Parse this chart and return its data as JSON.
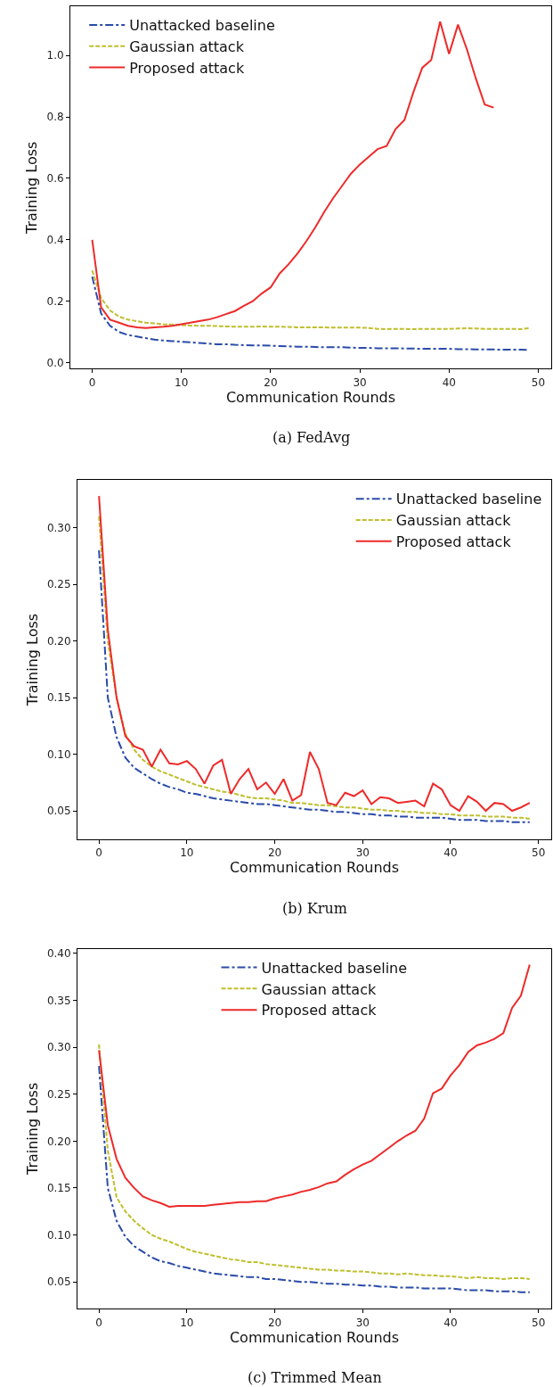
{
  "chart_data": [
    {
      "type": "line",
      "xlabel": "Communication Rounds",
      "ylabel": "Training Loss",
      "annotations": [
        "(a) FedAvg"
      ],
      "xlim": [
        -2.45,
        51.45
      ],
      "xticks": [
        0,
        10,
        20,
        30,
        40,
        50
      ],
      "ylim": [
        -0.02,
        1.16
      ],
      "yticks": [
        {
          "value": 0,
          "label": "0.0"
        },
        0.2,
        0.4,
        0.6,
        0.8,
        {
          "value": 1,
          "label": "1.0"
        }
      ],
      "legend": "top left",
      "series": [
        {
          "name": "Unattacked baseline",
          "color": "#2b4ba8",
          "line_style": "dashdot",
          "x": [
            0,
            1,
            2,
            3,
            4,
            5,
            6,
            7,
            8,
            9,
            10,
            11,
            12,
            13,
            14,
            15,
            16,
            17,
            18,
            19,
            20,
            21,
            22,
            23,
            24,
            25,
            26,
            27,
            28,
            29,
            30,
            31,
            32,
            33,
            34,
            35,
            36,
            37,
            38,
            39,
            40,
            41,
            42,
            43,
            44,
            45,
            46,
            47,
            48,
            49
          ],
          "values": [
            0.28,
            0.16,
            0.12,
            0.1,
            0.09,
            0.085,
            0.08,
            0.075,
            0.072,
            0.07,
            0.068,
            0.066,
            0.064,
            0.062,
            0.06,
            0.06,
            0.058,
            0.057,
            0.056,
            0.056,
            0.055,
            0.054,
            0.053,
            0.052,
            0.052,
            0.051,
            0.05,
            0.05,
            0.05,
            0.049,
            0.048,
            0.048,
            0.047,
            0.047,
            0.047,
            0.046,
            0.046,
            0.045,
            0.045,
            0.045,
            0.045,
            0.044,
            0.044,
            0.043,
            0.043,
            0.043,
            0.042,
            0.042,
            0.042,
            0.041
          ]
        },
        {
          "name": "Gaussian attack",
          "color": "#bfbf2f",
          "line_style": "dashed",
          "x": [
            0,
            1,
            2,
            3,
            4,
            5,
            6,
            7,
            8,
            9,
            10,
            11,
            12,
            13,
            14,
            15,
            16,
            17,
            18,
            19,
            20,
            21,
            22,
            23,
            24,
            25,
            26,
            27,
            28,
            29,
            30,
            31,
            32,
            33,
            34,
            35,
            36,
            37,
            38,
            39,
            40,
            41,
            42,
            43,
            44,
            45,
            46,
            47,
            48,
            49
          ],
          "values": [
            0.3,
            0.21,
            0.17,
            0.15,
            0.14,
            0.135,
            0.13,
            0.128,
            0.125,
            0.124,
            0.122,
            0.121,
            0.12,
            0.12,
            0.119,
            0.118,
            0.117,
            0.117,
            0.117,
            0.118,
            0.117,
            0.117,
            0.116,
            0.115,
            0.115,
            0.115,
            0.115,
            0.114,
            0.114,
            0.114,
            0.114,
            0.113,
            0.11,
            0.109,
            0.11,
            0.11,
            0.109,
            0.11,
            0.11,
            0.11,
            0.11,
            0.111,
            0.112,
            0.111,
            0.11,
            0.11,
            0.11,
            0.11,
            0.109,
            0.112
          ]
        },
        {
          "name": "Proposed attack",
          "color": "#ee2a2a",
          "line_style": "solid",
          "x": [
            0,
            1,
            2,
            3,
            4,
            5,
            6,
            7,
            8,
            9,
            10,
            11,
            12,
            13,
            14,
            15,
            16,
            17,
            18,
            19,
            20,
            21,
            22,
            23,
            24,
            25,
            26,
            27,
            28,
            29,
            30,
            31,
            32,
            33,
            34,
            35,
            36,
            37,
            38,
            39,
            40,
            41,
            42,
            43,
            44,
            45
          ],
          "values": [
            0.4,
            0.18,
            0.14,
            0.13,
            0.12,
            0.115,
            0.113,
            0.115,
            0.117,
            0.12,
            0.125,
            0.13,
            0.135,
            0.14,
            0.148,
            0.158,
            0.168,
            0.185,
            0.2,
            0.225,
            0.245,
            0.29,
            0.32,
            0.355,
            0.395,
            0.44,
            0.49,
            0.535,
            0.575,
            0.615,
            0.645,
            0.67,
            0.695,
            0.705,
            0.76,
            0.79,
            0.88,
            0.96,
            0.985,
            1.11,
            1.005,
            1.1,
            1.02,
            0.925,
            0.84,
            0.83
          ]
        }
      ]
    },
    {
      "type": "line",
      "xlabel": "Communication Rounds",
      "ylabel": "Training Loss",
      "annotations": [
        "(b) Krum"
      ],
      "xlim": [
        -2.45,
        51.45
      ],
      "xticks": [
        0,
        10,
        20,
        30,
        40,
        50
      ],
      "ylim": [
        0.025,
        0.342
      ],
      "yticks": [
        0.05,
        {
          "value": 0.1,
          "label": "0.10"
        },
        0.15,
        {
          "value": 0.2,
          "label": "0.20"
        },
        0.25,
        {
          "value": 0.3,
          "label": "0.30"
        }
      ],
      "legend": "top right",
      "series": [
        {
          "name": "Unattacked baseline",
          "color": "#2b4ba8",
          "line_style": "dashdot",
          "x": [
            0,
            1,
            2,
            3,
            4,
            5,
            6,
            7,
            8,
            9,
            10,
            11,
            12,
            13,
            14,
            15,
            16,
            17,
            18,
            19,
            20,
            21,
            22,
            23,
            24,
            25,
            26,
            27,
            28,
            29,
            30,
            31,
            32,
            33,
            34,
            35,
            36,
            37,
            38,
            39,
            40,
            41,
            42,
            43,
            44,
            45,
            46,
            47,
            48,
            49
          ],
          "values": [
            0.28,
            0.15,
            0.115,
            0.097,
            0.088,
            0.083,
            0.078,
            0.074,
            0.071,
            0.069,
            0.066,
            0.065,
            0.063,
            0.061,
            0.06,
            0.059,
            0.058,
            0.057,
            0.056,
            0.056,
            0.055,
            0.054,
            0.053,
            0.052,
            0.051,
            0.051,
            0.05,
            0.049,
            0.049,
            0.048,
            0.047,
            0.047,
            0.046,
            0.046,
            0.045,
            0.045,
            0.044,
            0.044,
            0.044,
            0.044,
            0.043,
            0.042,
            0.042,
            0.042,
            0.041,
            0.041,
            0.041,
            0.04,
            0.04,
            0.04
          ]
        },
        {
          "name": "Gaussian attack",
          "color": "#bfbf2f",
          "line_style": "dashed",
          "x": [
            0,
            1,
            2,
            3,
            4,
            5,
            6,
            7,
            8,
            9,
            10,
            11,
            12,
            13,
            14,
            15,
            16,
            17,
            18,
            19,
            20,
            21,
            22,
            23,
            24,
            25,
            26,
            27,
            28,
            29,
            30,
            31,
            32,
            33,
            34,
            35,
            36,
            37,
            38,
            39,
            40,
            41,
            42,
            43,
            44,
            45,
            46,
            47,
            48,
            49
          ],
          "values": [
            0.31,
            0.2,
            0.15,
            0.118,
            0.104,
            0.095,
            0.089,
            0.085,
            0.082,
            0.079,
            0.076,
            0.073,
            0.071,
            0.069,
            0.067,
            0.066,
            0.064,
            0.062,
            0.061,
            0.061,
            0.06,
            0.059,
            0.057,
            0.057,
            0.056,
            0.055,
            0.055,
            0.054,
            0.053,
            0.053,
            0.052,
            0.051,
            0.051,
            0.05,
            0.05,
            0.049,
            0.049,
            0.048,
            0.048,
            0.047,
            0.047,
            0.046,
            0.046,
            0.046,
            0.045,
            0.045,
            0.045,
            0.044,
            0.044,
            0.043
          ]
        },
        {
          "name": "Proposed attack",
          "color": "#ee2a2a",
          "line_style": "solid",
          "x": [
            0,
            1,
            2,
            3,
            4,
            5,
            6,
            7,
            8,
            9,
            10,
            11,
            12,
            13,
            14,
            15,
            16,
            17,
            18,
            19,
            20,
            21,
            22,
            23,
            24,
            25,
            26,
            27,
            28,
            29,
            30,
            31,
            32,
            33,
            34,
            35,
            36,
            37,
            38,
            39,
            40,
            41,
            42,
            43,
            44,
            45,
            46,
            47,
            48,
            49
          ],
          "values": [
            0.328,
            0.21,
            0.15,
            0.116,
            0.107,
            0.104,
            0.089,
            0.104,
            0.092,
            0.091,
            0.094,
            0.087,
            0.074,
            0.09,
            0.095,
            0.065,
            0.078,
            0.087,
            0.069,
            0.075,
            0.065,
            0.078,
            0.059,
            0.064,
            0.102,
            0.087,
            0.057,
            0.055,
            0.066,
            0.063,
            0.068,
            0.056,
            0.062,
            0.061,
            0.057,
            0.058,
            0.059,
            0.054,
            0.074,
            0.069,
            0.055,
            0.05,
            0.063,
            0.058,
            0.05,
            0.057,
            0.056,
            0.05,
            0.053,
            0.057
          ]
        }
      ]
    },
    {
      "type": "line",
      "xlabel": "Communication Rounds",
      "ylabel": "Training Loss",
      "annotations": [
        "(c) Trimmed Mean"
      ],
      "xlim": [
        -2.45,
        51.45
      ],
      "xticks": [
        0,
        10,
        20,
        30,
        40,
        50
      ],
      "ylim": [
        0.0215,
        0.405
      ],
      "yticks": [
        0.05,
        {
          "value": 0.1,
          "label": "0.10"
        },
        0.15,
        {
          "value": 0.2,
          "label": "0.20"
        },
        0.25,
        {
          "value": 0.3,
          "label": "0.30"
        },
        0.35,
        {
          "value": 0.4,
          "label": "0.40"
        }
      ],
      "legend": "top",
      "series": [
        {
          "name": "Unattacked baseline",
          "color": "#2b4ba8",
          "line_style": "dashdot",
          "x": [
            0,
            1,
            2,
            3,
            4,
            5,
            6,
            7,
            8,
            9,
            10,
            11,
            12,
            13,
            14,
            15,
            16,
            17,
            18,
            19,
            20,
            21,
            22,
            23,
            24,
            25,
            26,
            27,
            28,
            29,
            30,
            31,
            32,
            33,
            34,
            35,
            36,
            37,
            38,
            39,
            40,
            41,
            42,
            43,
            44,
            45,
            46,
            47,
            48,
            49
          ],
          "values": [
            0.28,
            0.15,
            0.115,
            0.098,
            0.088,
            0.082,
            0.076,
            0.072,
            0.07,
            0.067,
            0.065,
            0.063,
            0.061,
            0.059,
            0.058,
            0.057,
            0.056,
            0.055,
            0.055,
            0.053,
            0.053,
            0.052,
            0.051,
            0.05,
            0.05,
            0.049,
            0.048,
            0.048,
            0.047,
            0.047,
            0.046,
            0.046,
            0.045,
            0.045,
            0.044,
            0.044,
            0.044,
            0.043,
            0.043,
            0.043,
            0.043,
            0.042,
            0.041,
            0.041,
            0.041,
            0.04,
            0.04,
            0.04,
            0.039,
            0.039
          ]
        },
        {
          "name": "Gaussian attack",
          "color": "#bfbf2f",
          "line_style": "dashed",
          "x": [
            0,
            1,
            2,
            3,
            4,
            5,
            6,
            7,
            8,
            9,
            10,
            11,
            12,
            13,
            14,
            15,
            16,
            17,
            18,
            19,
            20,
            21,
            22,
            23,
            24,
            25,
            26,
            27,
            28,
            29,
            30,
            31,
            32,
            33,
            34,
            35,
            36,
            37,
            38,
            39,
            40,
            41,
            42,
            43,
            44,
            45,
            46,
            47,
            48,
            49
          ],
          "values": [
            0.303,
            0.19,
            0.14,
            0.125,
            0.115,
            0.107,
            0.1,
            0.096,
            0.093,
            0.089,
            0.085,
            0.082,
            0.08,
            0.078,
            0.076,
            0.074,
            0.073,
            0.071,
            0.071,
            0.069,
            0.068,
            0.067,
            0.066,
            0.065,
            0.064,
            0.063,
            0.063,
            0.062,
            0.062,
            0.061,
            0.061,
            0.06,
            0.059,
            0.059,
            0.058,
            0.059,
            0.058,
            0.057,
            0.057,
            0.056,
            0.056,
            0.055,
            0.054,
            0.055,
            0.054,
            0.054,
            0.053,
            0.054,
            0.054,
            0.053
          ]
        },
        {
          "name": "Proposed attack",
          "color": "#ee2a2a",
          "line_style": "solid",
          "x": [
            0,
            1,
            2,
            3,
            4,
            5,
            6,
            7,
            8,
            9,
            10,
            11,
            12,
            13,
            14,
            15,
            16,
            17,
            18,
            19,
            20,
            21,
            22,
            23,
            24,
            25,
            26,
            27,
            28,
            29,
            30,
            31,
            32,
            33,
            34,
            35,
            36,
            37,
            38,
            39,
            40,
            41,
            42,
            43,
            44,
            45,
            46,
            47,
            48,
            49
          ],
          "values": [
            0.297,
            0.217,
            0.181,
            0.161,
            0.15,
            0.141,
            0.137,
            0.134,
            0.13,
            0.131,
            0.131,
            0.131,
            0.131,
            0.132,
            0.133,
            0.134,
            0.135,
            0.135,
            0.136,
            0.136,
            0.139,
            0.141,
            0.143,
            0.146,
            0.148,
            0.151,
            0.155,
            0.157,
            0.164,
            0.17,
            0.175,
            0.179,
            0.186,
            0.193,
            0.2,
            0.206,
            0.211,
            0.224,
            0.251,
            0.256,
            0.27,
            0.281,
            0.295,
            0.302,
            0.305,
            0.309,
            0.315,
            0.342,
            0.355,
            0.388
          ]
        }
      ]
    }
  ]
}
